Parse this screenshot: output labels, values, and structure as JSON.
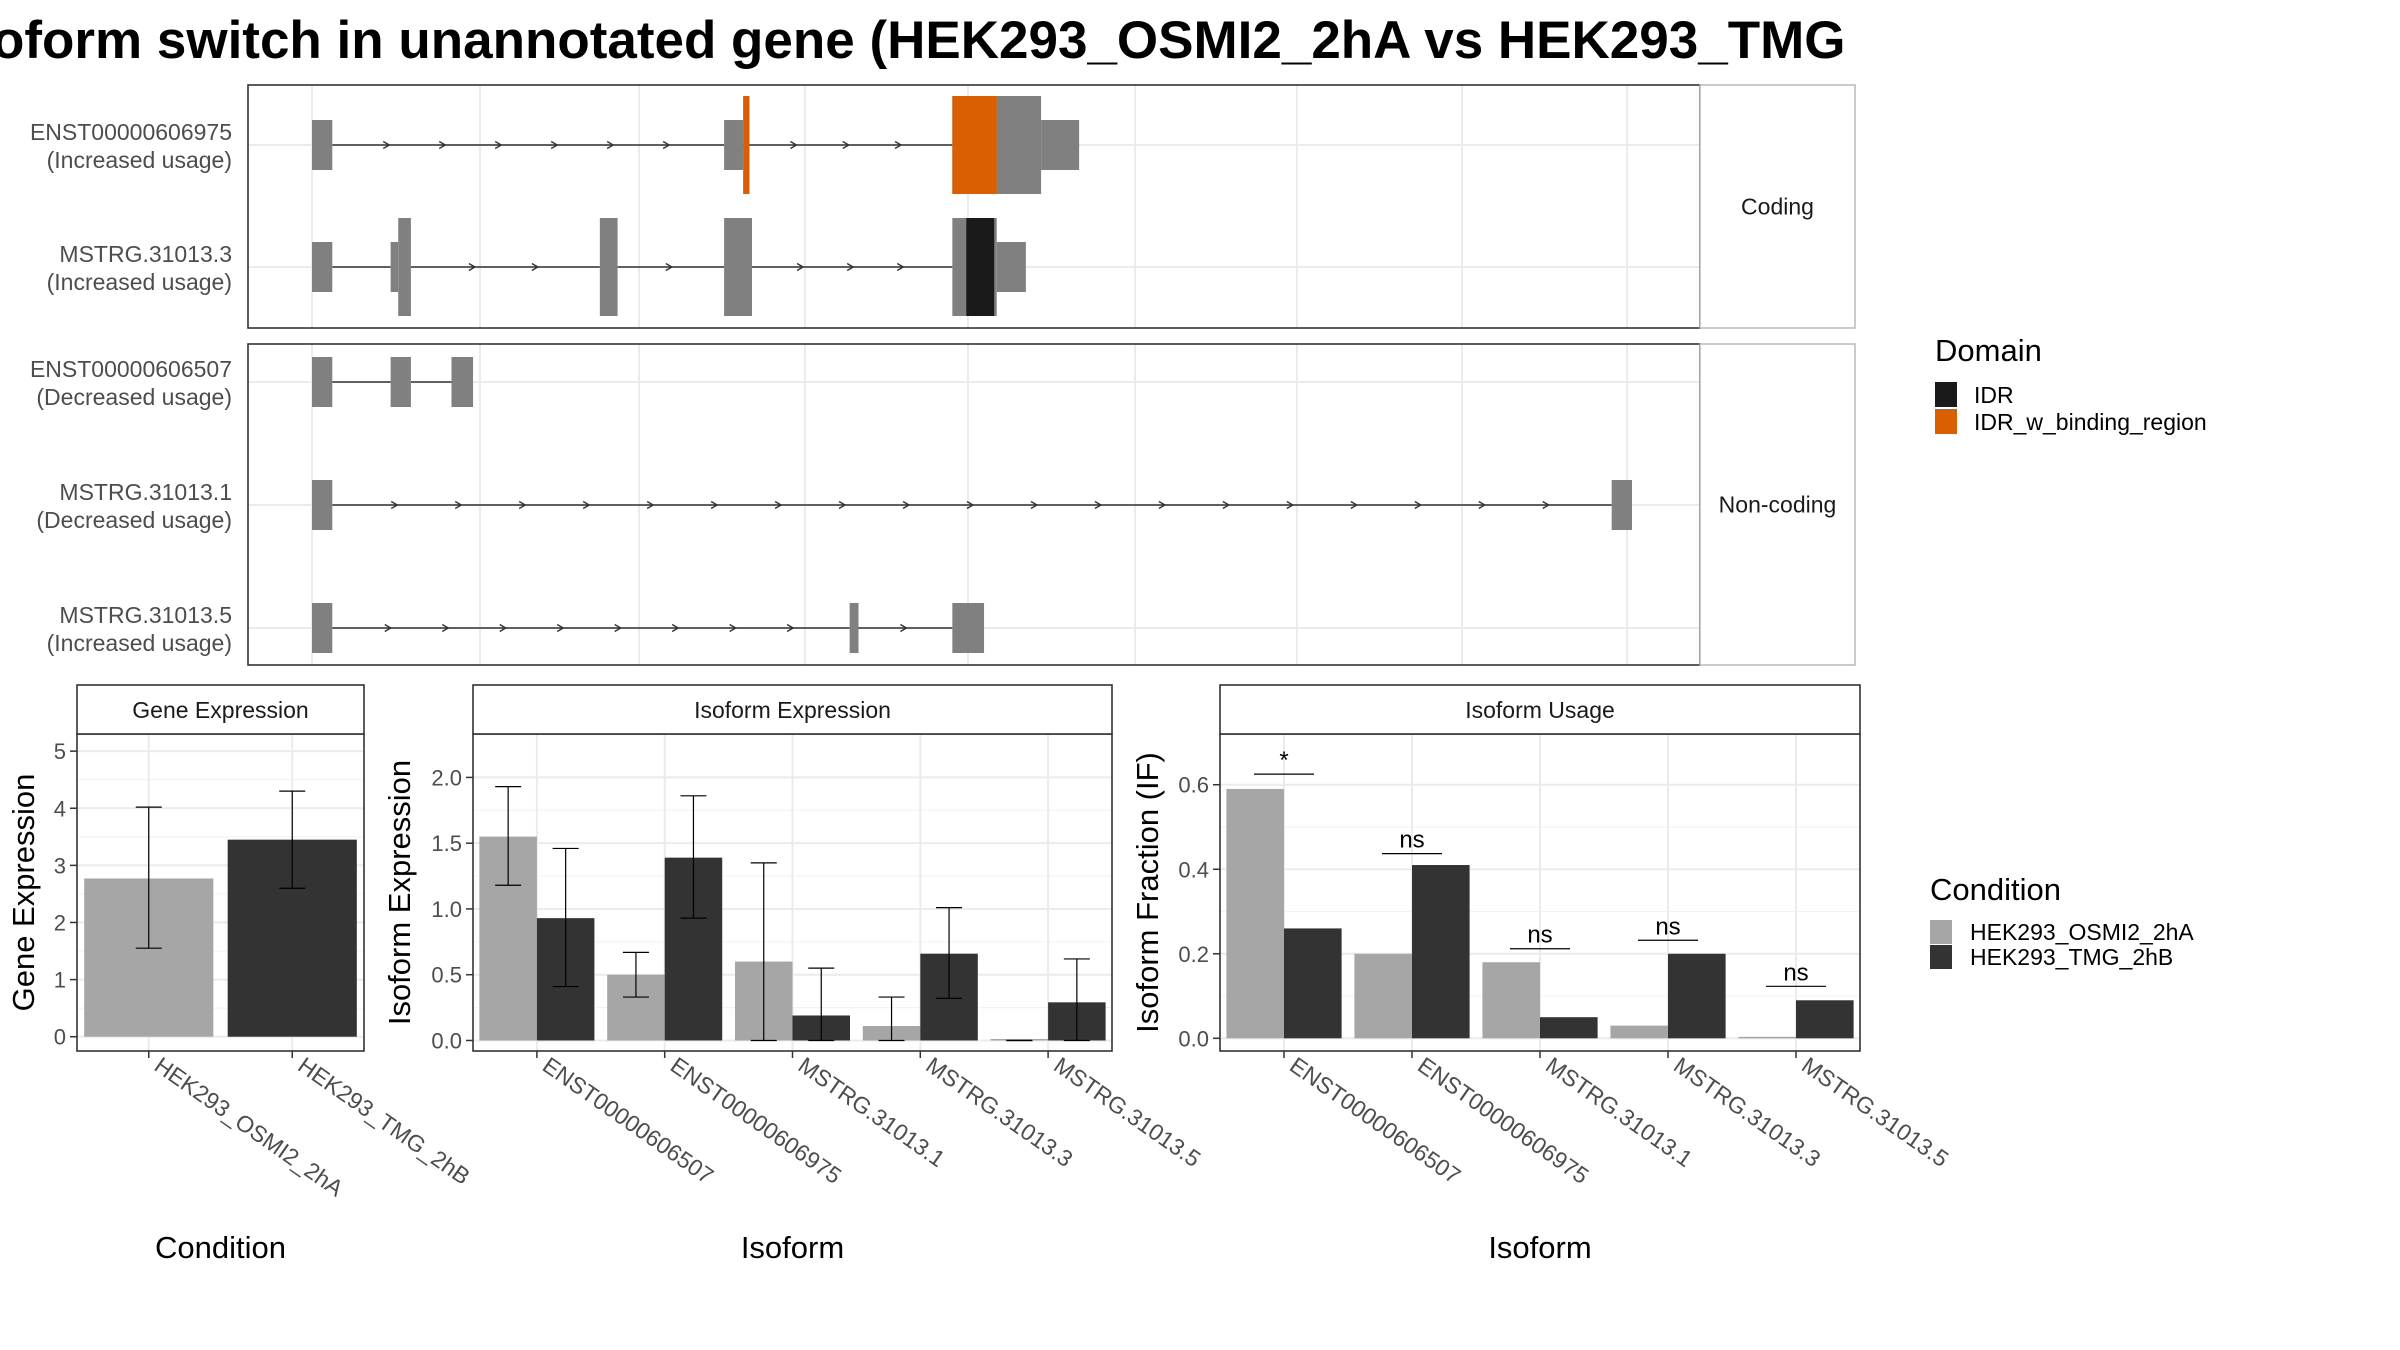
{
  "title": "oform switch in unannotated gene (HEK293_OSMI2_2hA vs HEK293_TMG",
  "colors": {
    "exon": "#808080",
    "IDR": "#1a1a1a",
    "IDR_w_binding_region": "#d95f02",
    "cond1": "#a6a6a6",
    "cond2": "#333333"
  },
  "structure": {
    "facets": [
      {
        "label": "Coding",
        "tracks": [
          {
            "name": "ENST00000606975",
            "usage": "(Increased usage)",
            "exons": [
              [
                0,
                16,
                "short"
              ],
              [
                325,
                340,
                "short"
              ],
              [
                505,
                575,
                "tall"
              ],
              [
                575,
                605,
                "short"
              ]
            ],
            "domains": [
              [
                340,
                345,
                "IDR_w_binding_region"
              ],
              [
                505,
                540,
                "IDR_w_binding_region"
              ]
            ]
          },
          {
            "name": "MSTRG.31013.3",
            "usage": "(Increased usage)",
            "exons": [
              [
                0,
                16,
                "short"
              ],
              [
                62,
                68,
                "short"
              ],
              [
                68,
                78,
                "tall"
              ],
              [
                227,
                241,
                "tall"
              ],
              [
                325,
                347,
                "tall"
              ],
              [
                505,
                540,
                "tall"
              ],
              [
                540,
                563,
                "short"
              ]
            ],
            "domains": [
              [
                516,
                538,
                "IDR"
              ]
            ]
          }
        ]
      },
      {
        "label": "Non-coding",
        "tracks": [
          {
            "name": "ENST00000606507",
            "usage": "(Decreased usage)",
            "exons": [
              [
                0,
                16,
                "short"
              ],
              [
                62,
                78,
                "short"
              ],
              [
                110,
                127,
                "short"
              ]
            ],
            "domains": []
          },
          {
            "name": "MSTRG.31013.1",
            "usage": "(Decreased usage)",
            "exons": [
              [
                0,
                16,
                "short"
              ],
              [
                1025,
                1041,
                "short"
              ]
            ],
            "domains": []
          },
          {
            "name": "MSTRG.31013.5",
            "usage": "(Increased usage)",
            "exons": [
              [
                0,
                16,
                "short"
              ],
              [
                424,
                431,
                "short"
              ],
              [
                505,
                530,
                "short"
              ]
            ],
            "domains": []
          }
        ]
      }
    ],
    "domain_legend": {
      "title": "Domain",
      "items": [
        {
          "name": "IDR",
          "color": "#1a1a1a"
        },
        {
          "name": "IDR_w_binding_region",
          "color": "#d95f02"
        }
      ]
    }
  },
  "chart_data": [
    {
      "type": "bar",
      "title": "Gene Expression",
      "xlabel": "Condition",
      "ylabel": "Gene Expression",
      "categories": [
        "HEK293_OSMI2_2hA",
        "HEK293_TMG_2hB"
      ],
      "values": [
        2.77,
        3.45
      ],
      "error_low": [
        1.55,
        2.6
      ],
      "error_high": [
        4.02,
        4.3
      ],
      "ylim": [
        -0.25,
        5.3
      ],
      "yticks": [
        0,
        1,
        2,
        3,
        4,
        5
      ],
      "grid": true
    },
    {
      "type": "bar",
      "title": "Isoform Expression",
      "xlabel": "Isoform",
      "ylabel": "Isoform Expression",
      "categories": [
        "ENST00000606507",
        "ENST00000606975",
        "MSTRG.31013.1",
        "MSTRG.31013.3",
        "MSTRG.31013.5"
      ],
      "series": [
        {
          "name": "HEK293_OSMI2_2hA",
          "values": [
            1.55,
            0.5,
            0.6,
            0.11,
            0.0
          ],
          "error_low": [
            1.18,
            0.33,
            0.0,
            0.0,
            0.0
          ],
          "error_high": [
            1.93,
            0.67,
            1.35,
            0.33,
            0.0
          ]
        },
        {
          "name": "HEK293_TMG_2hB",
          "values": [
            0.93,
            1.39,
            0.19,
            0.66,
            0.29
          ],
          "error_low": [
            0.41,
            0.93,
            0.0,
            0.32,
            0.0
          ],
          "error_high": [
            1.46,
            1.86,
            0.55,
            1.01,
            0.62
          ]
        }
      ],
      "ylim": [
        -0.08,
        2.33
      ],
      "yticks": [
        "0.0",
        "0.5",
        "1.0",
        "1.5",
        "2.0"
      ],
      "grid": true
    },
    {
      "type": "bar",
      "title": "Isoform Usage",
      "xlabel": "Isoform",
      "ylabel": "Isoform Fraction (IF)",
      "categories": [
        "ENST00000606507",
        "ENST00000606975",
        "MSTRG.31013.1",
        "MSTRG.31013.3",
        "MSTRG.31013.5"
      ],
      "series": [
        {
          "name": "HEK293_OSMI2_2hA",
          "values": [
            0.59,
            0.2,
            0.18,
            0.03,
            0.0
          ]
        },
        {
          "name": "HEK293_TMG_2hB",
          "values": [
            0.26,
            0.41,
            0.05,
            0.2,
            0.09
          ]
        }
      ],
      "significance": [
        "*",
        "ns",
        "ns",
        "ns",
        "ns"
      ],
      "significance_y": [
        0.625,
        0.437,
        0.212,
        0.232,
        0.123
      ],
      "ylim": [
        -0.03,
        0.72
      ],
      "yticks": [
        "0.0",
        "0.2",
        "0.4",
        "0.6"
      ],
      "grid": true
    }
  ],
  "condition_legend": {
    "title": "Condition",
    "items": [
      {
        "name": "HEK293_OSMI2_2hA",
        "color": "#a6a6a6"
      },
      {
        "name": "HEK293_TMG_2hB",
        "color": "#333333"
      }
    ]
  }
}
